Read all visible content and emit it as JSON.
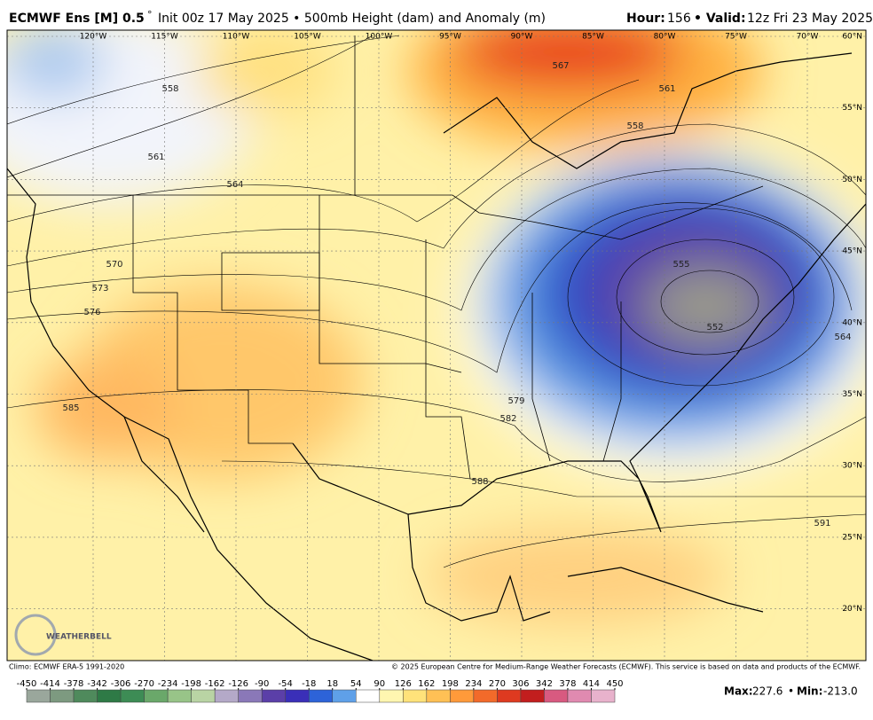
{
  "header": {
    "title": "ECMWF Ens [M] 0.5",
    "degree": "°",
    "subtitle": "Init 00z 17 May 2025 • 500mb Height (dam) and Anomaly (m)",
    "hour_label": "Hour:",
    "hour": 156,
    "valid_label": "• Valid:",
    "valid": "12z Fri 23 May 2025"
  },
  "map": {
    "longitudes": [
      "120°W",
      "115°W",
      "110°W",
      "105°W",
      "100°W",
      "95°W",
      "90°W",
      "85°W",
      "80°W",
      "75°W",
      "70°W"
    ],
    "latitudes": [
      "60°N",
      "55°N",
      "50°N",
      "45°N",
      "40°N",
      "35°N",
      "30°N",
      "25°N",
      "20°N"
    ],
    "contour_labels": [
      558,
      561,
      564,
      567,
      570,
      573,
      576,
      585,
      588,
      591,
      552,
      555,
      579,
      582,
      564,
      561,
      558
    ],
    "logo": "WEATHERBELL"
  },
  "footer": {
    "climo": "Climo: ECMWF ERA-5 1991-2020",
    "copyright": "© 2025 European Centre for Medium-Range Weather Forecasts (ECMWF). This service is based on data and products of the ECMWF.",
    "max_label": "Max:",
    "max": 227.6,
    "separator": "•",
    "min_label": "Min:",
    "min": {
      "value": -213,
      "label": "-213.0"
    }
  },
  "colorbar": {
    "ticks": [
      -450,
      -414,
      -378,
      -342,
      -306,
      -270,
      -234,
      -198,
      -162,
      -126,
      -90,
      -54,
      -18,
      18,
      54,
      90,
      126,
      162,
      198,
      234,
      270,
      306,
      342,
      378,
      414,
      450
    ],
    "colors": [
      "#9aa79c",
      "#7d9a80",
      "#4f8a5c",
      "#2e7a46",
      "#3d8c55",
      "#6aa86a",
      "#98c488",
      "#b9d4a4",
      "#b4a9c8",
      "#8a78b8",
      "#5b3fa8",
      "#3a2fb8",
      "#2d63d8",
      "#5fa0e8",
      "#ffffff",
      "#fff6b0",
      "#ffe27a",
      "#ffc055",
      "#ff9a3a",
      "#f26a2a",
      "#de3a20",
      "#c21e1e",
      "#d85a80",
      "#e08ab0",
      "#e8b2cc"
    ]
  }
}
